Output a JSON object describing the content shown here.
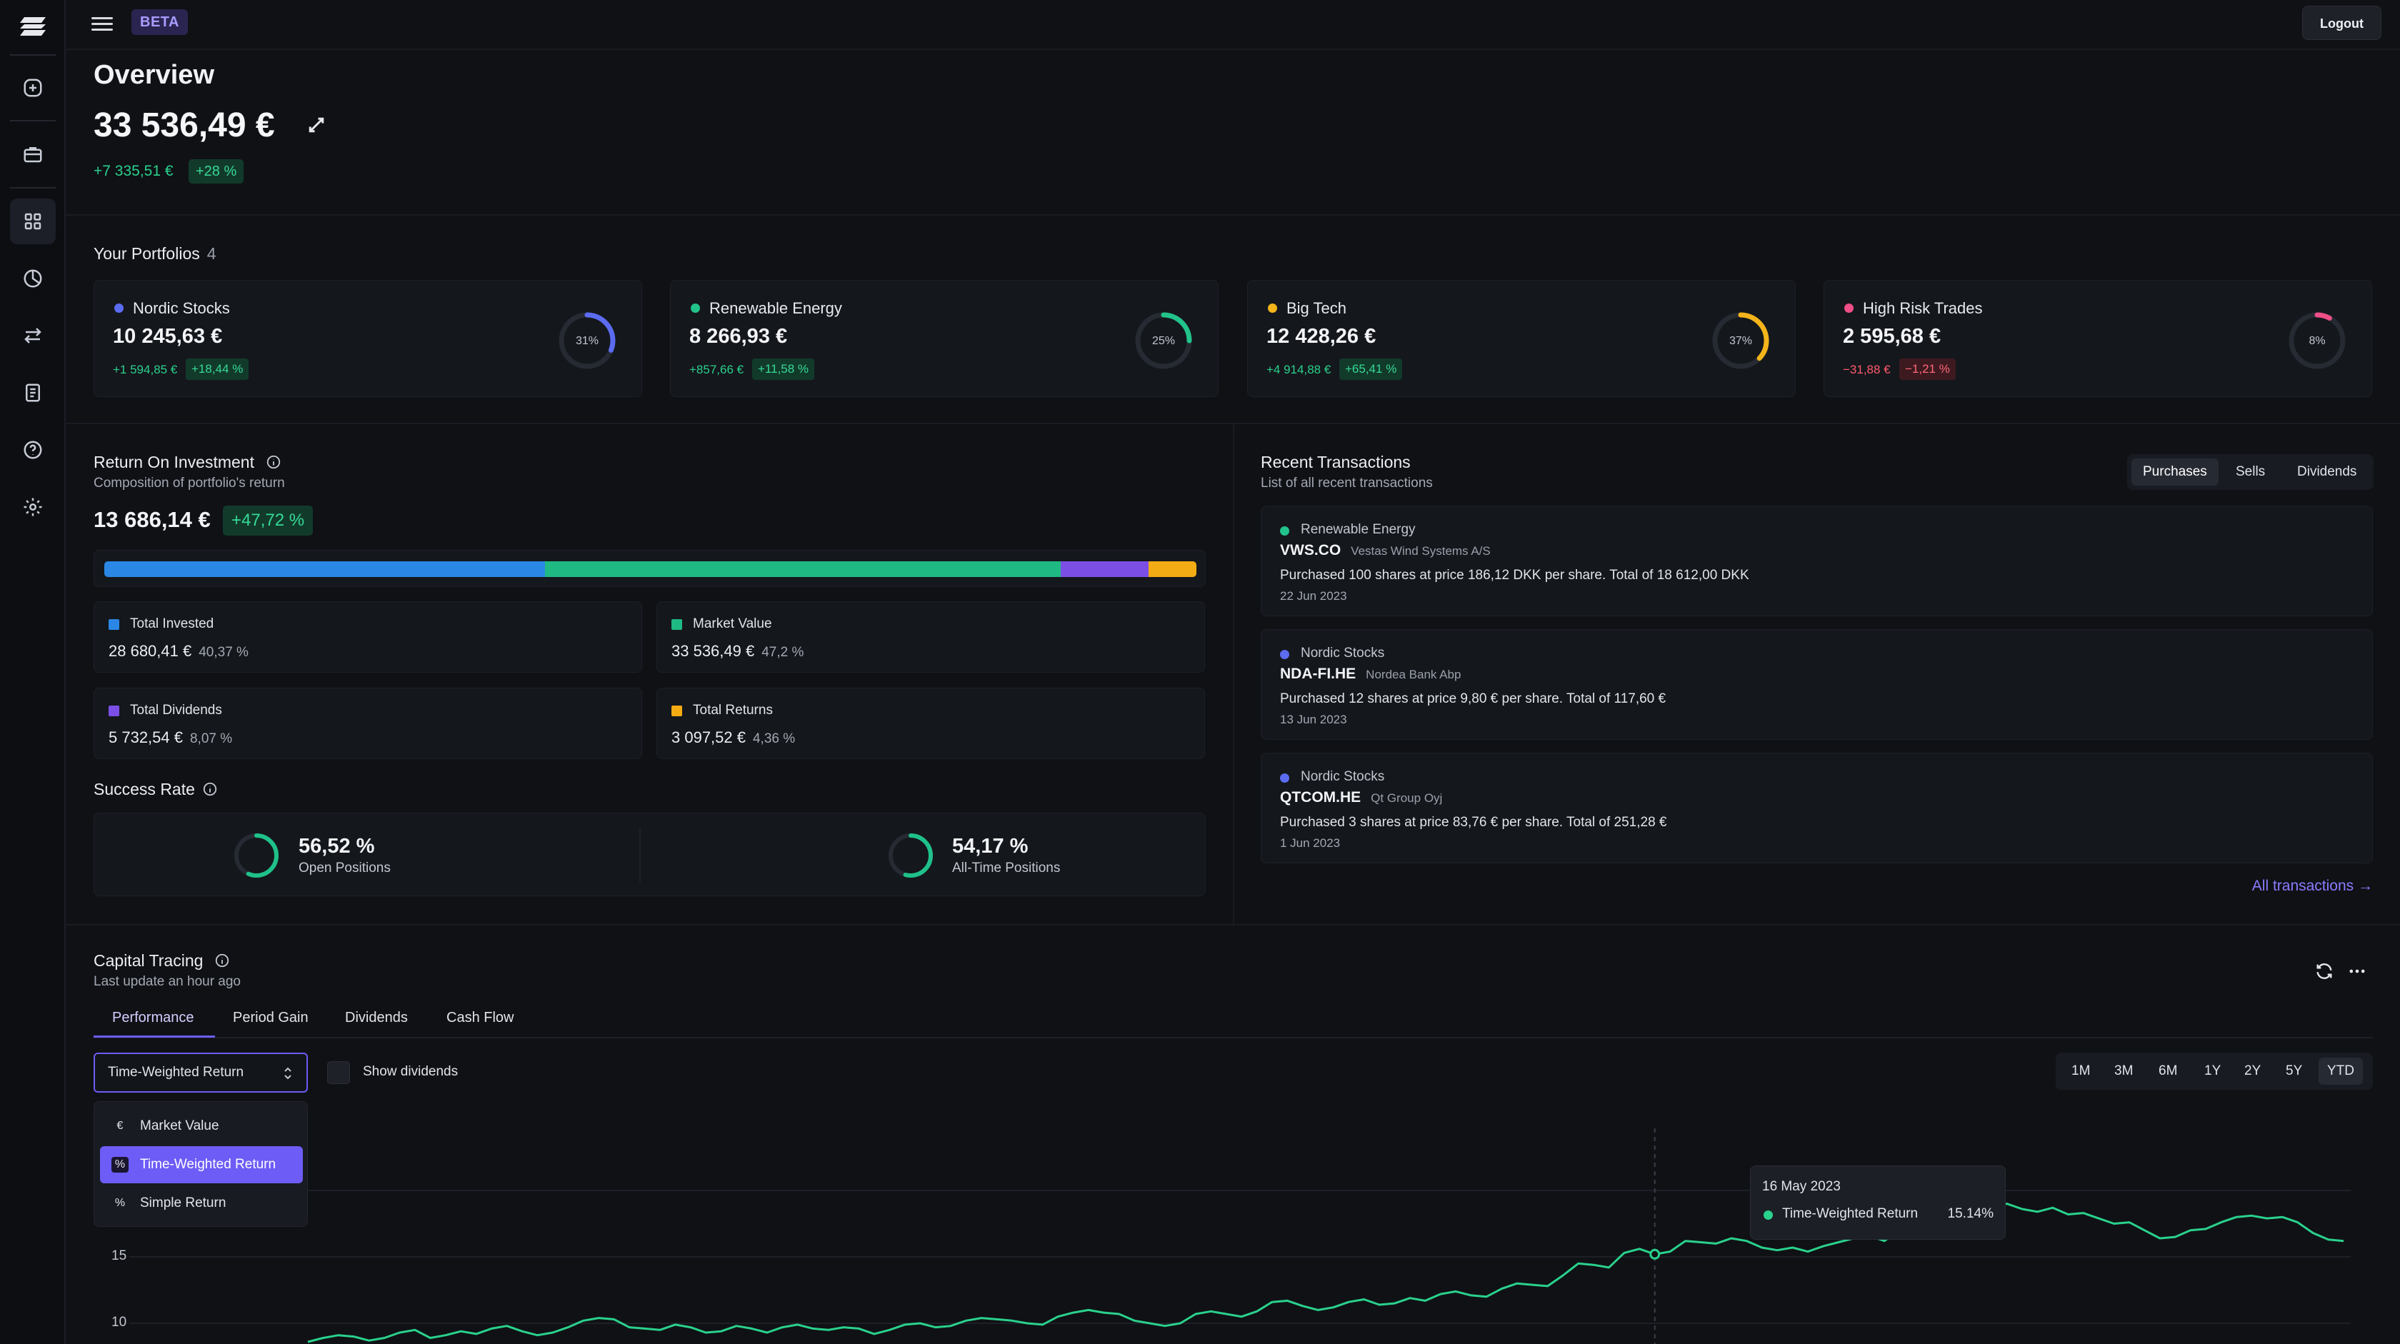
{
  "topbar": {
    "badge": "BETA",
    "logout_label": "Logout"
  },
  "sidebar": {
    "items": [
      "add-icon",
      "briefcase-icon",
      "dashboard-icon",
      "pie-chart-icon",
      "transfer-icon",
      "document-icon",
      "help-icon",
      "settings-icon"
    ],
    "active": "dashboard-icon"
  },
  "overview": {
    "title": "Overview",
    "total_value": "33 536,49 €",
    "change": "+7 335,51 €",
    "change_pct": "+28 %"
  },
  "portfolios": {
    "title": "Your Portfolios",
    "count": "4",
    "items": [
      {
        "name": "Nordic Stocks",
        "value": "10 245,63 €",
        "change": "+1 594,85 €",
        "pct": "+18,44 %",
        "share_label": "31%",
        "share": 31,
        "color": "#5b6cf0",
        "positive": true
      },
      {
        "name": "Renewable Energy",
        "value": "8 266,93 €",
        "change": "+857,66 €",
        "pct": "+11,58 %",
        "share_label": "25%",
        "share": 25,
        "color": "#22c38b",
        "positive": true
      },
      {
        "name": "Big Tech",
        "value": "12 428,26 €",
        "change": "+4 914,88 €",
        "pct": "+65,41 %",
        "share_label": "37%",
        "share": 37,
        "color": "#f4b41a",
        "positive": true
      },
      {
        "name": "High Risk Trades",
        "value": "2 595,68 €",
        "change": "−31,88 €",
        "pct": "−1,21 %",
        "share_label": "8%",
        "share": 8,
        "color": "#ef4f86",
        "positive": false
      }
    ]
  },
  "roi": {
    "title": "Return On Investment",
    "subtitle": "Composition of portfolio's return",
    "value": "13 686,14 €",
    "pct": "+47,72 %",
    "composition": [
      {
        "name": "Total Invested",
        "value": "28 680,41 €",
        "pct": "40,37 %",
        "share": 40.37,
        "color": "#2b87e6"
      },
      {
        "name": "Market Value",
        "value": "33 536,49 €",
        "pct": "47,2 %",
        "share": 47.2,
        "color": "#1fba84"
      },
      {
        "name": "Total Dividends",
        "value": "5 732,54 €",
        "pct": "8,07 %",
        "share": 8.07,
        "color": "#7b4fe6"
      },
      {
        "name": "Total Returns",
        "value": "3 097,52 €",
        "pct": "4,36 %",
        "share": 4.36,
        "color": "#f4ac14"
      }
    ]
  },
  "success_rate": {
    "title": "Success Rate",
    "open": {
      "value": "56,52 %",
      "label": "Open Positions",
      "share": 56.52
    },
    "all_time": {
      "value": "54,17 %",
      "label": "All-Time Positions",
      "share": 54.17
    }
  },
  "transactions": {
    "title": "Recent Transactions",
    "subtitle": "List of all recent transactions",
    "tabs": [
      "Purchases",
      "Sells",
      "Dividends"
    ],
    "active_tab": "Purchases",
    "items": [
      {
        "portfolio": "Renewable Energy",
        "dot": "#22c38b",
        "ticker": "VWS.CO",
        "company": "Vestas Wind Systems A/S",
        "description": "Purchased 100 shares at price 186,12 DKK per share. Total of 18 612,00 DKK",
        "date": "22 Jun 2023"
      },
      {
        "portfolio": "Nordic Stocks",
        "dot": "#5b6cf0",
        "ticker": "NDA-FI.HE",
        "company": "Nordea Bank Abp",
        "description": "Purchased 12 shares at price 9,80 € per share. Total of 117,60 €",
        "date": "13 Jun 2023"
      },
      {
        "portfolio": "Nordic Stocks",
        "dot": "#5b6cf0",
        "ticker": "QTCOM.HE",
        "company": "Qt Group Oyj",
        "description": "Purchased 3 shares at price 83,76 € per share. Total of 251,28 €",
        "date": "1 Jun 2023"
      }
    ],
    "all_link": "All transactions →"
  },
  "capital": {
    "title": "Capital Tracing",
    "subtitle": "Last update an hour ago",
    "tabs": [
      "Performance",
      "Period Gain",
      "Dividends",
      "Cash Flow"
    ],
    "active_tab": "Performance",
    "select_value": "Time-Weighted Return",
    "show_dividends": "Show dividends",
    "ranges": [
      "1M",
      "3M",
      "6M",
      "1Y",
      "2Y",
      "5Y",
      "YTD"
    ],
    "active_range": "YTD",
    "dropdown": [
      {
        "symbol": "€",
        "label": "Market Value"
      },
      {
        "symbol": "%",
        "label": "Time-Weighted Return"
      },
      {
        "symbol": "%",
        "label": "Simple Return"
      }
    ],
    "tooltip": {
      "date": "16 May 2023",
      "series": "Time-Weighted Return",
      "value": "15.14%"
    }
  },
  "chart_data": {
    "type": "line",
    "series": [
      {
        "name": "Time-Weighted Return",
        "color": "#2ad18c",
        "values": [
          8.6,
          8.9,
          9.1,
          9.0,
          8.7,
          8.9,
          9.3,
          9.5,
          8.9,
          9.1,
          9.4,
          9.2,
          9.6,
          9.8,
          9.4,
          9.1,
          9.3,
          9.7,
          10.2,
          10.4,
          10.3,
          9.7,
          9.6,
          9.5,
          9.9,
          9.7,
          9.3,
          9.4,
          9.8,
          9.6,
          9.3,
          9.7,
          9.9,
          9.6,
          9.5,
          9.7,
          9.6,
          9.2,
          9.5,
          9.9,
          10.0,
          9.7,
          9.8,
          10.2,
          10.4,
          10.3,
          10.2,
          10.0,
          9.9,
          10.5,
          10.8,
          11.0,
          10.8,
          10.7,
          10.2,
          10.0,
          9.8,
          10.0,
          10.7,
          10.9,
          10.7,
          10.5,
          10.9,
          11.6,
          11.7,
          11.3,
          11.0,
          11.2,
          11.6,
          11.8,
          11.4,
          11.5,
          11.9,
          11.7,
          12.2,
          12.4,
          12.1,
          12.0,
          12.6,
          13.0,
          12.9,
          12.8,
          13.6,
          14.5,
          14.4,
          14.2,
          15.3,
          15.6,
          15.2,
          15.4,
          16.2,
          16.1,
          16.0,
          16.4,
          16.2,
          15.7,
          15.5,
          15.7,
          15.4,
          15.8,
          16.1,
          16.4,
          16.6,
          16.2,
          17.0,
          17.4,
          17.8,
          18.4,
          19.1,
          18.8,
          18.9,
          19.0,
          18.6,
          18.4,
          18.7,
          18.2,
          18.3,
          17.9,
          17.5,
          17.6,
          17.0,
          16.4,
          16.5,
          17.0,
          17.1,
          17.6,
          18.0,
          18.1,
          17.9,
          18.0,
          17.6,
          16.8,
          16.3,
          16.2
        ]
      }
    ],
    "yticks": [
      10,
      15
    ],
    "ylim": [
      8,
      21
    ],
    "highlight": {
      "x_label": "16 May 2023",
      "value": 15.14
    },
    "grid": true
  }
}
